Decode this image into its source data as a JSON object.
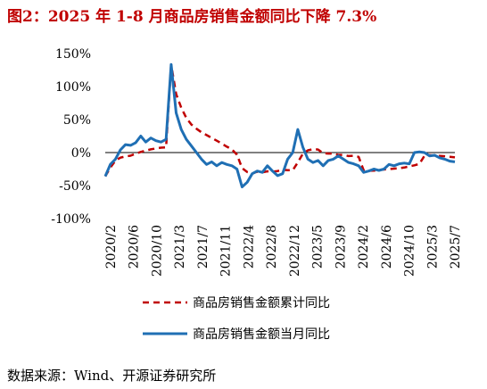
{
  "title": "图2：2025 年 1-8 月商品房销售金额同比下降 7.3%",
  "source": "数据来源：Wind、开源证券研究所",
  "chart_data": {
    "type": "line",
    "title": "图2：2025 年 1-8 月商品房销售金额同比下降 7.3%",
    "xlabel": "",
    "ylabel": "",
    "ylim": [
      -100,
      150
    ],
    "y_ticks": [
      "150%",
      "100%",
      "50%",
      "0%",
      "-50%",
      "-100%"
    ],
    "x_tick_labels": [
      "2020/2",
      "2020/6",
      "2020/10",
      "2021/3",
      "2021/7",
      "2021/11",
      "2022/4",
      "2022/8",
      "2022/12",
      "2023/5",
      "2023/9",
      "2024/2",
      "2024/6",
      "2024/10",
      "2025/3",
      "2025/7"
    ],
    "grid": false,
    "legend_position": "bottom",
    "series": [
      {
        "name": "商品房销售金额累计同比",
        "color": "#c00000",
        "style": "dashed",
        "values": [
          -35.9,
          -22.9,
          -12.1,
          -7.7,
          -5.8,
          -4.7,
          -1.7,
          1.0,
          3.0,
          4.8,
          6.2,
          7.4,
          7.8,
          133.4,
          88.5,
          68.0,
          52.4,
          42.5,
          36.1,
          30.7,
          26.5,
          22.3,
          18.0,
          13.7,
          8.9,
          4.8,
          -3.3,
          -23.5,
          -29.5,
          -31.8,
          -29.1,
          -30.0,
          -28.4,
          -28.9,
          -28.0,
          -26.1,
          -26.7,
          -26.7,
          -14.9,
          -1.6,
          3.4,
          5.2,
          4.6,
          -0.9,
          -1.5,
          -1.6,
          -3.5,
          -3.7,
          -5.3,
          -4.9,
          -6.5,
          -26.9,
          -27.6,
          -27.4,
          -26.2,
          -25.7,
          -25.0,
          -24.3,
          -23.6,
          -22.7,
          -20.9,
          -19.3,
          -17.1,
          -4.9,
          -3.9,
          -4.6,
          -5.0,
          -5.6,
          -6.3,
          -7.3
        ]
      },
      {
        "name": "商品房销售金额当月同比",
        "color": "#1f6fb4",
        "style": "solid",
        "values": [
          -35.9,
          -18.0,
          -10.0,
          4.0,
          12.0,
          11.0,
          15.0,
          25.0,
          16.0,
          22.0,
          18.0,
          16.0,
          20.0,
          133.4,
          60.0,
          35.0,
          20.0,
          10.0,
          0.0,
          -10.0,
          -18.0,
          -14.0,
          -20.0,
          -15.0,
          -18.0,
          -20.0,
          -25.0,
          -52.0,
          -45.0,
          -32.0,
          -28.0,
          -30.0,
          -20.0,
          -28.0,
          -35.0,
          -32.0,
          -10.0,
          0.0,
          35.0,
          8.0,
          -10.0,
          -15.0,
          -12.0,
          -20.0,
          -12.0,
          -10.0,
          -5.0,
          -10.0,
          -15.0,
          -17.0,
          -20.0,
          -30.0,
          -28.0,
          -25.0,
          -27.0,
          -25.0,
          -18.0,
          -20.0,
          -17.0,
          -16.0,
          -17.0,
          0.0,
          1.0,
          0.0,
          -5.0,
          -4.0,
          -8.0,
          -10.0,
          -13.0,
          -14.0
        ]
      }
    ]
  }
}
